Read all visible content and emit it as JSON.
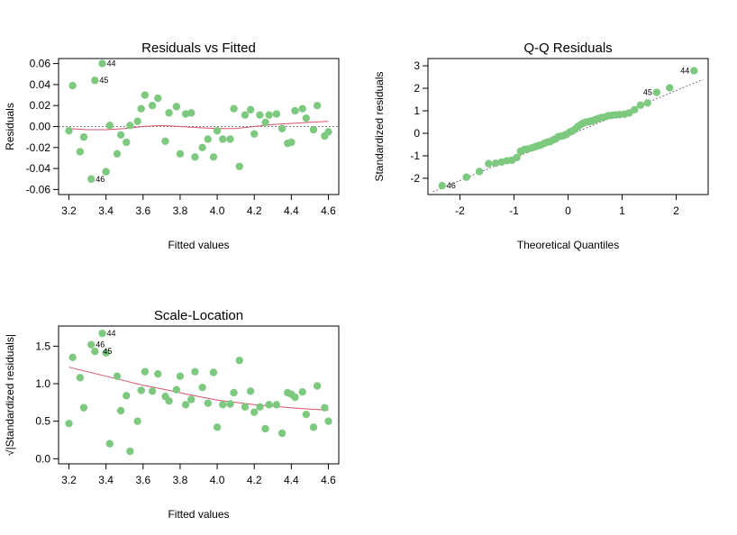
{
  "colors": {
    "points": "#7dc97f",
    "smooth": "#d9536e",
    "reference": "#555555",
    "frame": "#000000"
  },
  "chart_data": [
    {
      "id": "rvf",
      "type": "scatter",
      "title": "Residuals vs Fitted",
      "xlabel": "Fitted values",
      "ylabel": "Residuals",
      "xlim": [
        3.2,
        4.6
      ],
      "ylim": [
        -0.06,
        0.06
      ],
      "xticks": [
        3.2,
        3.4,
        3.6,
        3.8,
        4.0,
        4.2,
        4.4,
        4.6
      ],
      "yticks": [
        -0.06,
        -0.04,
        -0.02,
        0.0,
        0.02,
        0.04,
        0.06
      ],
      "xtick_labels": [
        "3.2",
        "3.4",
        "3.6",
        "3.8",
        "4.0",
        "4.2",
        "4.4",
        "4.6"
      ],
      "ytick_labels": [
        "-0.06",
        "-0.04",
        "-0.02",
        "0.00",
        "0.02",
        "0.04",
        "0.06"
      ],
      "reference_line": {
        "y": 0
      },
      "points": [
        {
          "x": 3.2,
          "y": -0.004
        },
        {
          "x": 3.22,
          "y": 0.039
        },
        {
          "x": 3.26,
          "y": -0.024
        },
        {
          "x": 3.28,
          "y": -0.01
        },
        {
          "x": 3.32,
          "y": -0.05
        },
        {
          "x": 3.34,
          "y": 0.044
        },
        {
          "x": 3.38,
          "y": 0.06
        },
        {
          "x": 3.4,
          "y": -0.043
        },
        {
          "x": 3.42,
          "y": 0.001
        },
        {
          "x": 3.46,
          "y": -0.026
        },
        {
          "x": 3.48,
          "y": -0.008
        },
        {
          "x": 3.51,
          "y": -0.015
        },
        {
          "x": 3.53,
          "y": 0.001
        },
        {
          "x": 3.57,
          "y": 0.005
        },
        {
          "x": 3.59,
          "y": 0.017
        },
        {
          "x": 3.61,
          "y": 0.03
        },
        {
          "x": 3.65,
          "y": 0.02
        },
        {
          "x": 3.68,
          "y": 0.027
        },
        {
          "x": 3.72,
          "y": -0.014
        },
        {
          "x": 3.74,
          "y": 0.013
        },
        {
          "x": 3.78,
          "y": 0.019
        },
        {
          "x": 3.8,
          "y": -0.026
        },
        {
          "x": 3.83,
          "y": 0.012
        },
        {
          "x": 3.86,
          "y": 0.013
        },
        {
          "x": 3.88,
          "y": -0.029
        },
        {
          "x": 3.92,
          "y": -0.02
        },
        {
          "x": 3.95,
          "y": -0.012
        },
        {
          "x": 3.98,
          "y": -0.029
        },
        {
          "x": 4.0,
          "y": -0.004
        },
        {
          "x": 4.03,
          "y": -0.012
        },
        {
          "x": 4.07,
          "y": -0.012
        },
        {
          "x": 4.09,
          "y": 0.017
        },
        {
          "x": 4.12,
          "y": -0.038
        },
        {
          "x": 4.15,
          "y": 0.011
        },
        {
          "x": 4.18,
          "y": 0.016
        },
        {
          "x": 4.2,
          "y": -0.007
        },
        {
          "x": 4.23,
          "y": 0.011
        },
        {
          "x": 4.26,
          "y": 0.004
        },
        {
          "x": 4.28,
          "y": 0.011
        },
        {
          "x": 4.32,
          "y": 0.012
        },
        {
          "x": 4.35,
          "y": -0.002
        },
        {
          "x": 4.38,
          "y": -0.016
        },
        {
          "x": 4.4,
          "y": -0.015
        },
        {
          "x": 4.42,
          "y": 0.015
        },
        {
          "x": 4.46,
          "y": 0.017
        },
        {
          "x": 4.48,
          "y": 0.008
        },
        {
          "x": 4.52,
          "y": -0.003
        },
        {
          "x": 4.54,
          "y": 0.02
        },
        {
          "x": 4.58,
          "y": -0.009
        },
        {
          "x": 4.6,
          "y": -0.005
        }
      ],
      "smooth": {
        "x": [
          3.2,
          3.3,
          3.4,
          3.5,
          3.6,
          3.7,
          3.8,
          3.9,
          4.0,
          4.1,
          4.2,
          4.3,
          4.4,
          4.5,
          4.6
        ],
        "y": [
          -0.002,
          -0.003,
          -0.003,
          -0.002,
          0.0,
          0.001,
          0.0,
          -0.001,
          -0.002,
          -0.002,
          0.0,
          0.002,
          0.003,
          0.004,
          0.005
        ]
      },
      "point_labels": [
        {
          "text": "44",
          "x": 3.38,
          "y": 0.06
        },
        {
          "text": "45",
          "x": 3.34,
          "y": 0.044
        },
        {
          "text": "46",
          "x": 3.32,
          "y": -0.05
        }
      ]
    },
    {
      "id": "qq",
      "type": "scatter",
      "title": "Q-Q Residuals",
      "xlabel": "Theoretical Quantiles",
      "ylabel": "Standardized residuals",
      "xlim": [
        -2.4,
        2.4
      ],
      "ylim": [
        -2.5,
        3.1
      ],
      "xticks": [
        -2,
        -1,
        0,
        1,
        2
      ],
      "yticks": [
        -2,
        -1,
        0,
        1,
        2,
        3
      ],
      "xtick_labels": [
        "-2",
        "-1",
        "0",
        "1",
        "2"
      ],
      "ytick_labels": [
        "-2",
        "-1",
        "0",
        "1",
        "2",
        "3"
      ],
      "reference_line": {
        "x": [
          -2.5,
          2.5
        ],
        "y": [
          -2.6,
          2.4
        ]
      },
      "points": [
        {
          "x": -2.33,
          "y": -2.33
        },
        {
          "x": -1.88,
          "y": -1.95
        },
        {
          "x": -1.64,
          "y": -1.7
        },
        {
          "x": -1.47,
          "y": -1.35
        },
        {
          "x": -1.34,
          "y": -1.33
        },
        {
          "x": -1.23,
          "y": -1.28
        },
        {
          "x": -1.13,
          "y": -1.22
        },
        {
          "x": -1.04,
          "y": -1.2
        },
        {
          "x": -0.95,
          "y": -1.08
        },
        {
          "x": -0.88,
          "y": -0.8
        },
        {
          "x": -0.81,
          "y": -0.72
        },
        {
          "x": -0.74,
          "y": -0.7
        },
        {
          "x": -0.67,
          "y": -0.65
        },
        {
          "x": -0.61,
          "y": -0.6
        },
        {
          "x": -0.55,
          "y": -0.55
        },
        {
          "x": -0.5,
          "y": -0.52
        },
        {
          "x": -0.44,
          "y": -0.45
        },
        {
          "x": -0.39,
          "y": -0.4
        },
        {
          "x": -0.33,
          "y": -0.37
        },
        {
          "x": -0.28,
          "y": -0.3
        },
        {
          "x": -0.23,
          "y": -0.25
        },
        {
          "x": -0.18,
          "y": -0.15
        },
        {
          "x": -0.13,
          "y": -0.13
        },
        {
          "x": -0.08,
          "y": -0.1
        },
        {
          "x": -0.03,
          "y": -0.05
        },
        {
          "x": 0.03,
          "y": 0.05
        },
        {
          "x": 0.08,
          "y": 0.1
        },
        {
          "x": 0.13,
          "y": 0.18
        },
        {
          "x": 0.18,
          "y": 0.3
        },
        {
          "x": 0.23,
          "y": 0.38
        },
        {
          "x": 0.28,
          "y": 0.45
        },
        {
          "x": 0.33,
          "y": 0.5
        },
        {
          "x": 0.39,
          "y": 0.52
        },
        {
          "x": 0.44,
          "y": 0.55
        },
        {
          "x": 0.5,
          "y": 0.6
        },
        {
          "x": 0.55,
          "y": 0.65
        },
        {
          "x": 0.61,
          "y": 0.7
        },
        {
          "x": 0.67,
          "y": 0.72
        },
        {
          "x": 0.74,
          "y": 0.78
        },
        {
          "x": 0.81,
          "y": 0.8
        },
        {
          "x": 0.88,
          "y": 0.82
        },
        {
          "x": 0.95,
          "y": 0.83
        },
        {
          "x": 1.04,
          "y": 0.85
        },
        {
          "x": 1.13,
          "y": 0.9
        },
        {
          "x": 1.23,
          "y": 1.05
        },
        {
          "x": 1.34,
          "y": 1.25
        },
        {
          "x": 1.47,
          "y": 1.35
        },
        {
          "x": 1.64,
          "y": 1.82
        },
        {
          "x": 1.88,
          "y": 2.02
        },
        {
          "x": 2.33,
          "y": 2.78
        }
      ],
      "point_labels": [
        {
          "text": "44",
          "x": 2.33,
          "y": 2.78
        },
        {
          "text": "45",
          "x": 1.64,
          "y": 1.82
        },
        {
          "text": "46",
          "x": -2.33,
          "y": -2.33
        }
      ]
    },
    {
      "id": "sl",
      "type": "scatter",
      "title": "Scale-Location",
      "xlabel": "Fitted values",
      "ylabel": "√|Standardized residuals|",
      "xlim": [
        3.2,
        4.6
      ],
      "ylim": [
        0.0,
        1.7
      ],
      "xticks": [
        3.2,
        3.4,
        3.6,
        3.8,
        4.0,
        4.2,
        4.4,
        4.6
      ],
      "yticks": [
        0.0,
        0.5,
        1.0,
        1.5
      ],
      "xtick_labels": [
        "3.2",
        "3.4",
        "3.6",
        "3.8",
        "4.0",
        "4.2",
        "4.4",
        "4.6"
      ],
      "ytick_labels": [
        "0.0",
        "0.5",
        "1.0",
        "1.5"
      ],
      "points": [
        {
          "x": 3.2,
          "y": 0.47
        },
        {
          "x": 3.22,
          "y": 1.35
        },
        {
          "x": 3.26,
          "y": 1.08
        },
        {
          "x": 3.28,
          "y": 0.68
        },
        {
          "x": 3.32,
          "y": 1.52
        },
        {
          "x": 3.34,
          "y": 1.43
        },
        {
          "x": 3.38,
          "y": 1.67
        },
        {
          "x": 3.4,
          "y": 1.41
        },
        {
          "x": 3.42,
          "y": 0.2
        },
        {
          "x": 3.46,
          "y": 1.1
        },
        {
          "x": 3.48,
          "y": 0.64
        },
        {
          "x": 3.51,
          "y": 0.84
        },
        {
          "x": 3.53,
          "y": 0.1
        },
        {
          "x": 3.57,
          "y": 0.5
        },
        {
          "x": 3.59,
          "y": 0.91
        },
        {
          "x": 3.61,
          "y": 1.16
        },
        {
          "x": 3.65,
          "y": 0.9
        },
        {
          "x": 3.68,
          "y": 1.13
        },
        {
          "x": 3.72,
          "y": 0.83
        },
        {
          "x": 3.74,
          "y": 0.77
        },
        {
          "x": 3.78,
          "y": 0.92
        },
        {
          "x": 3.8,
          "y": 1.1
        },
        {
          "x": 3.83,
          "y": 0.72
        },
        {
          "x": 3.86,
          "y": 0.79
        },
        {
          "x": 3.88,
          "y": 1.16
        },
        {
          "x": 3.92,
          "y": 0.95
        },
        {
          "x": 3.95,
          "y": 0.74
        },
        {
          "x": 3.98,
          "y": 1.15
        },
        {
          "x": 4.0,
          "y": 0.42
        },
        {
          "x": 4.03,
          "y": 0.72
        },
        {
          "x": 4.07,
          "y": 0.73
        },
        {
          "x": 4.09,
          "y": 0.88
        },
        {
          "x": 4.12,
          "y": 1.31
        },
        {
          "x": 4.15,
          "y": 0.69
        },
        {
          "x": 4.18,
          "y": 0.9
        },
        {
          "x": 4.2,
          "y": 0.62
        },
        {
          "x": 4.23,
          "y": 0.69
        },
        {
          "x": 4.26,
          "y": 0.4
        },
        {
          "x": 4.28,
          "y": 0.72
        },
        {
          "x": 4.32,
          "y": 0.72
        },
        {
          "x": 4.35,
          "y": 0.34
        },
        {
          "x": 4.38,
          "y": 0.88
        },
        {
          "x": 4.4,
          "y": 0.86
        },
        {
          "x": 4.42,
          "y": 0.82
        },
        {
          "x": 4.46,
          "y": 0.89
        },
        {
          "x": 4.48,
          "y": 0.59
        },
        {
          "x": 4.52,
          "y": 0.42
        },
        {
          "x": 4.54,
          "y": 0.97
        },
        {
          "x": 4.58,
          "y": 0.68
        },
        {
          "x": 4.6,
          "y": 0.5
        }
      ],
      "smooth": {
        "x": [
          3.2,
          3.3,
          3.4,
          3.5,
          3.6,
          3.7,
          3.8,
          3.9,
          4.0,
          4.1,
          4.2,
          4.3,
          4.4,
          4.5,
          4.6
        ],
        "y": [
          1.22,
          1.16,
          1.1,
          1.04,
          0.98,
          0.93,
          0.88,
          0.83,
          0.78,
          0.75,
          0.72,
          0.7,
          0.68,
          0.66,
          0.65
        ]
      },
      "point_labels": [
        {
          "text": "44",
          "x": 3.38,
          "y": 1.67
        },
        {
          "text": "46",
          "x": 3.32,
          "y": 1.52
        },
        {
          "text": "45",
          "x": 3.36,
          "y": 1.43
        }
      ]
    }
  ]
}
